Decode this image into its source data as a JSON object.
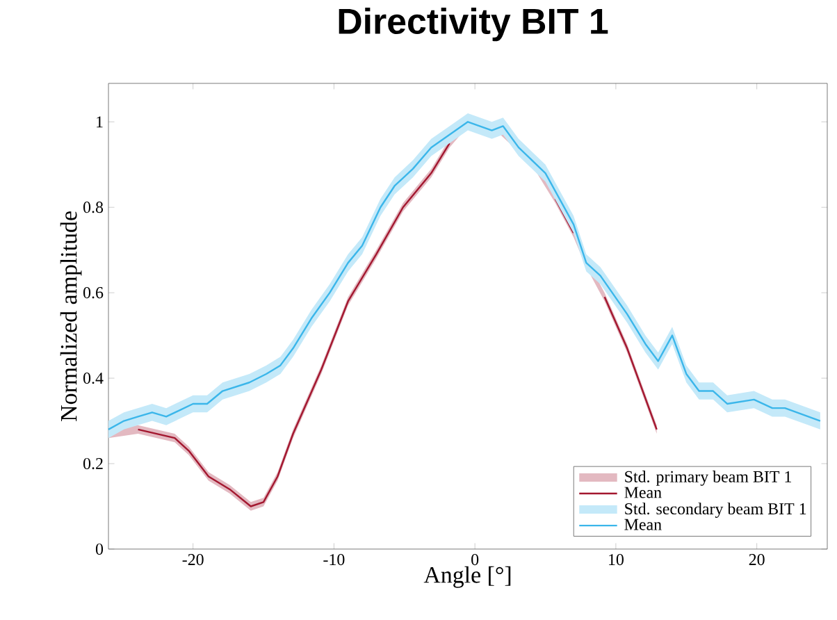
{
  "chart_data": {
    "type": "line",
    "title": "Directivity BIT 1",
    "xlabel": "Angle [°]",
    "ylabel": "Normalized amplitude",
    "xlim": [
      -26,
      25
    ],
    "ylim": [
      0,
      1.09
    ],
    "xticks": [
      -20,
      -10,
      0,
      10,
      20
    ],
    "yticks": [
      0,
      0.2,
      0.4,
      0.6,
      0.8,
      1
    ],
    "legend": "bottom right",
    "annotations": [
      "Std. primary beam BIT 1",
      "Std. secondary beam BIT 1"
    ],
    "series": [
      {
        "name": "Mean",
        "color": "#a3172f",
        "x": [
          -26,
          -23.9,
          -21.3,
          -20.3,
          -18.9,
          -17.4,
          -15.9,
          -15,
          -14,
          -12.9,
          -10.9,
          -9,
          -7,
          -5.1,
          -3.1,
          -1.8,
          -0.5,
          1.8,
          3.1,
          4.4,
          5.7,
          7,
          7.9,
          9.2,
          10.8,
          12.9
        ],
        "values": [
          null,
          0.28,
          0.26,
          0.23,
          0.17,
          0.14,
          0.1,
          0.11,
          0.17,
          0.27,
          0.42,
          0.58,
          0.69,
          0.8,
          0.88,
          0.95,
          null,
          null,
          null,
          null,
          0.82,
          0.74,
          null,
          0.59,
          0.47,
          0.28
        ],
        "lower": [
          0.26,
          0.27,
          0.25,
          0.22,
          0.16,
          0.13,
          0.09,
          0.1,
          0.16,
          0.26,
          0.41,
          0.57,
          0.68,
          0.79,
          0.87,
          0.94,
          0.99,
          0.97,
          0.93,
          0.88,
          0.81,
          0.73,
          0.66,
          0.58,
          0.46,
          0.27
        ],
        "upper": [
          0.28,
          0.29,
          0.27,
          0.24,
          0.18,
          0.15,
          0.11,
          0.12,
          0.18,
          0.28,
          0.43,
          0.59,
          0.7,
          0.81,
          0.89,
          0.96,
          1.01,
          0.99,
          0.95,
          0.9,
          0.83,
          0.75,
          0.68,
          0.6,
          0.48,
          0.29
        ]
      },
      {
        "name": "Mean",
        "color": "#3bb6ea",
        "x": [
          -26,
          -24.9,
          -23.9,
          -22.9,
          -21.9,
          -20,
          -19,
          -17.9,
          -16,
          -14.8,
          -13.8,
          -12.9,
          -11.6,
          -10.3,
          -9,
          -8,
          -6.7,
          -5.7,
          -4.4,
          -3.1,
          -1.8,
          -0.5,
          1.2,
          2,
          3.1,
          5,
          7,
          7.9,
          8.9,
          10.8,
          12.1,
          13,
          14,
          15,
          15.9,
          16.9,
          17.9,
          19.8,
          21.1,
          22,
          24.5
        ],
        "values": [
          0.28,
          0.3,
          0.31,
          0.32,
          0.31,
          0.34,
          0.34,
          0.37,
          0.39,
          0.41,
          0.43,
          0.47,
          0.54,
          0.6,
          0.67,
          0.71,
          0.8,
          0.85,
          0.89,
          0.94,
          0.97,
          1.0,
          0.98,
          0.99,
          0.94,
          0.88,
          0.76,
          0.67,
          0.64,
          0.55,
          0.48,
          0.44,
          0.5,
          0.41,
          0.37,
          0.37,
          0.34,
          0.35,
          0.33,
          0.33,
          0.3
        ],
        "lower": [
          0.26,
          0.28,
          0.29,
          0.3,
          0.29,
          0.32,
          0.32,
          0.35,
          0.37,
          0.39,
          0.41,
          0.45,
          0.52,
          0.58,
          0.65,
          0.69,
          0.78,
          0.83,
          0.87,
          0.92,
          0.95,
          0.98,
          0.96,
          0.97,
          0.92,
          0.86,
          0.74,
          0.65,
          0.62,
          0.53,
          0.46,
          0.42,
          0.48,
          0.39,
          0.35,
          0.35,
          0.32,
          0.33,
          0.31,
          0.31,
          0.28
        ],
        "upper": [
          0.3,
          0.32,
          0.33,
          0.34,
          0.33,
          0.36,
          0.36,
          0.39,
          0.41,
          0.43,
          0.45,
          0.49,
          0.56,
          0.62,
          0.69,
          0.73,
          0.82,
          0.87,
          0.91,
          0.96,
          0.99,
          1.02,
          1.0,
          1.01,
          0.96,
          0.9,
          0.78,
          0.69,
          0.66,
          0.57,
          0.5,
          0.46,
          0.52,
          0.43,
          0.39,
          0.39,
          0.36,
          0.37,
          0.35,
          0.35,
          0.32
        ]
      }
    ]
  }
}
